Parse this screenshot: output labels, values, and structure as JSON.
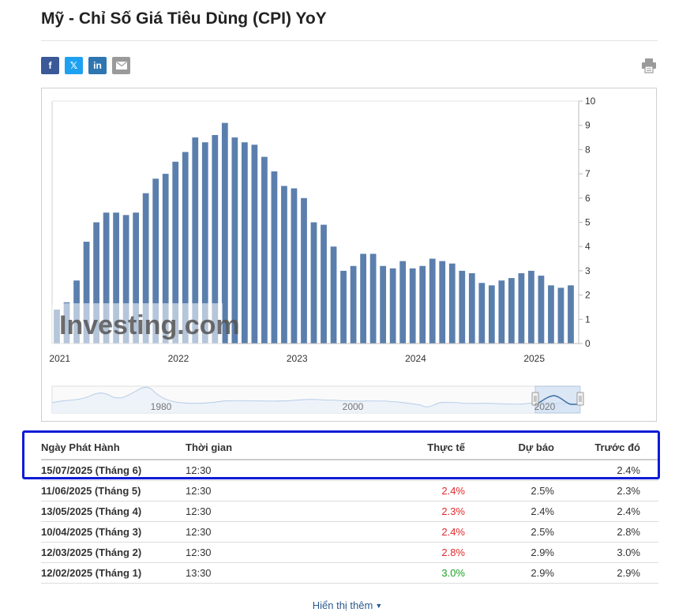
{
  "page": {
    "title": "Mỹ - Chỉ Số Giá Tiêu Dùng (CPI) YoY"
  },
  "share": {
    "facebook_label": "f",
    "twitter_label": "𝕏",
    "linkedin_label": "in",
    "email_icon": "envelope-icon",
    "print_icon": "printer-icon"
  },
  "colors": {
    "bar": "#5b7fad",
    "navigator_line": "#a9c3e2",
    "actual_red": "#e0292a",
    "actual_green": "#1ba023",
    "link": "#2a5a8f",
    "highlight": "#0d1bd6"
  },
  "watermark": "Investing.com",
  "chart_data": {
    "type": "bar",
    "ylim": [
      0,
      10
    ],
    "y_ticks": [
      "10",
      "9",
      "8",
      "7",
      "6",
      "5",
      "4",
      "3",
      "2",
      "1",
      "0"
    ],
    "x_tick_labels": [
      "2021",
      "2022",
      "2023",
      "2024",
      "2025"
    ],
    "x_tick_index": [
      0,
      12,
      24,
      36,
      48
    ],
    "start_month": "2021-01",
    "values": [
      1.4,
      1.7,
      2.6,
      4.2,
      5.0,
      5.4,
      5.4,
      5.3,
      5.4,
      6.2,
      6.8,
      7.0,
      7.5,
      7.9,
      8.5,
      8.3,
      8.6,
      9.1,
      8.5,
      8.3,
      8.2,
      7.7,
      7.1,
      6.5,
      6.4,
      6.0,
      5.0,
      4.9,
      4.0,
      3.0,
      3.2,
      3.7,
      3.7,
      3.2,
      3.1,
      3.4,
      3.1,
      3.2,
      3.5,
      3.4,
      3.3,
      3.0,
      2.9,
      2.5,
      2.4,
      2.6,
      2.7,
      2.9,
      3.0,
      2.8,
      2.4,
      2.3,
      2.4
    ],
    "navigator_labels": [
      "1980",
      "2000",
      "2020"
    ]
  },
  "table": {
    "headers": {
      "date": "Ngày Phát Hành",
      "time": "Thời gian",
      "actual": "Thực tế",
      "forecast": "Dự báo",
      "previous": "Trước đó"
    },
    "rows": [
      {
        "date": "15/07/2025 (Tháng 6)",
        "time": "12:30",
        "actual": "",
        "actual_color": "",
        "forecast": "",
        "previous": "2.4%"
      },
      {
        "date": "11/06/2025 (Tháng 5)",
        "time": "12:30",
        "actual": "2.4%",
        "actual_color": "#e0292a",
        "forecast": "2.5%",
        "previous": "2.3%"
      },
      {
        "date": "13/05/2025 (Tháng 4)",
        "time": "12:30",
        "actual": "2.3%",
        "actual_color": "#e0292a",
        "forecast": "2.4%",
        "previous": "2.4%"
      },
      {
        "date": "10/04/2025 (Tháng 3)",
        "time": "12:30",
        "actual": "2.4%",
        "actual_color": "#e0292a",
        "forecast": "2.5%",
        "previous": "2.8%"
      },
      {
        "date": "12/03/2025 (Tháng 2)",
        "time": "12:30",
        "actual": "2.8%",
        "actual_color": "#e0292a",
        "forecast": "2.9%",
        "previous": "3.0%"
      },
      {
        "date": "12/02/2025 (Tháng 1)",
        "time": "13:30",
        "actual": "3.0%",
        "actual_color": "#1ba023",
        "forecast": "2.9%",
        "previous": "2.9%"
      }
    ]
  },
  "show_more": {
    "label": "Hiển thị thêm",
    "icon": "chevron-down-icon"
  }
}
